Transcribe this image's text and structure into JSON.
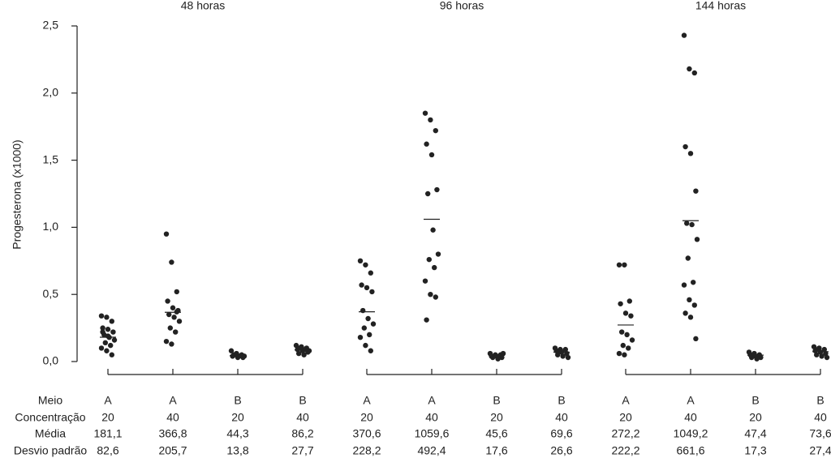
{
  "chart_data": {
    "type": "strip",
    "ylabel": "Progesterona (x1000)",
    "ylim": [
      0,
      2.5
    ],
    "yticks": [
      {
        "value": 0,
        "label": "0,0"
      },
      {
        "value": 0.5,
        "label": "0,5"
      },
      {
        "value": 1,
        "label": "1,0"
      },
      {
        "value": 1.5,
        "label": "1,5"
      },
      {
        "value": 2,
        "label": "2,0"
      },
      {
        "value": 2.5,
        "label": "2,5"
      }
    ],
    "color": "#222222",
    "panels": [
      {
        "title": "48 horas",
        "groups": [
          {
            "values": [
              0.34,
              0.33,
              0.3,
              0.25,
              0.24,
              0.22,
              0.2,
              0.18,
              0.16,
              0.14,
              0.12,
              0.1,
              0.08,
              0.05,
              0.22,
              0.19
            ],
            "mean": 0.1811
          },
          {
            "values": [
              0.95,
              0.74,
              0.52,
              0.45,
              0.4,
              0.38,
              0.35,
              0.33,
              0.3,
              0.25,
              0.22,
              0.15,
              0.13,
              0.37
            ],
            "mean": 0.3668
          },
          {
            "values": [
              0.08,
              0.06,
              0.05,
              0.04,
              0.03,
              0.03,
              0.05,
              0.04,
              0.04
            ],
            "mean": 0.0443
          },
          {
            "values": [
              0.12,
              0.11,
              0.1,
              0.09,
              0.08,
              0.07,
              0.06,
              0.05,
              0.08,
              0.1,
              0.09
            ],
            "mean": 0.0862
          }
        ]
      },
      {
        "title": "96 horas",
        "groups": [
          {
            "values": [
              0.75,
              0.72,
              0.66,
              0.57,
              0.55,
              0.52,
              0.38,
              0.32,
              0.28,
              0.25,
              0.2,
              0.18,
              0.12,
              0.08
            ],
            "mean": 0.3706
          },
          {
            "values": [
              1.85,
              1.8,
              1.72,
              1.62,
              1.54,
              1.28,
              1.25,
              0.98,
              0.8,
              0.76,
              0.7,
              0.6,
              0.5,
              0.48,
              0.31
            ],
            "mean": 1.0596
          },
          {
            "values": [
              0.06,
              0.05,
              0.05,
              0.04,
              0.04,
              0.03,
              0.03,
              0.02,
              0.06
            ],
            "mean": 0.0456
          },
          {
            "values": [
              0.1,
              0.09,
              0.09,
              0.08,
              0.07,
              0.06,
              0.05,
              0.04,
              0.03,
              0.08
            ],
            "mean": 0.0696
          }
        ]
      },
      {
        "title": "144 horas",
        "groups": [
          {
            "values": [
              0.72,
              0.72,
              0.45,
              0.43,
              0.36,
              0.34,
              0.22,
              0.2,
              0.16,
              0.12,
              0.1,
              0.06,
              0.05
            ],
            "mean": 0.2722
          },
          {
            "values": [
              2.43,
              2.18,
              2.15,
              1.6,
              1.55,
              1.27,
              1.03,
              1.02,
              0.91,
              0.77,
              0.59,
              0.57,
              0.46,
              0.42,
              0.36,
              0.33,
              0.17
            ],
            "mean": 1.0492
          },
          {
            "values": [
              0.07,
              0.06,
              0.05,
              0.05,
              0.04,
              0.03,
              0.03,
              0.02
            ],
            "mean": 0.0474
          },
          {
            "values": [
              0.11,
              0.1,
              0.09,
              0.08,
              0.07,
              0.06,
              0.05,
              0.04,
              0.03,
              0.09
            ],
            "mean": 0.0736
          }
        ]
      }
    ]
  },
  "table": {
    "rows": [
      {
        "label": "Meio",
        "cells": [
          "A",
          "A",
          "B",
          "B",
          "A",
          "A",
          "B",
          "B",
          "A",
          "A",
          "B",
          "B"
        ]
      },
      {
        "label": "Concentração",
        "cells": [
          "20",
          "40",
          "20",
          "40",
          "20",
          "40",
          "20",
          "40",
          "20",
          "40",
          "20",
          "40"
        ]
      },
      {
        "label": "Média",
        "cells": [
          "181,1",
          "366,8",
          "44,3",
          "86,2",
          "370,6",
          "1059,6",
          "45,6",
          "69,6",
          "272,2",
          "1049,2",
          "47,4",
          "73,6"
        ]
      },
      {
        "label": "Desvio padrão",
        "cells": [
          "82,6",
          "205,7",
          "13,8",
          "27,7",
          "228,2",
          "492,4",
          "17,6",
          "26,6",
          "222,2",
          "661,6",
          "17,3",
          "27,4"
        ]
      }
    ]
  }
}
